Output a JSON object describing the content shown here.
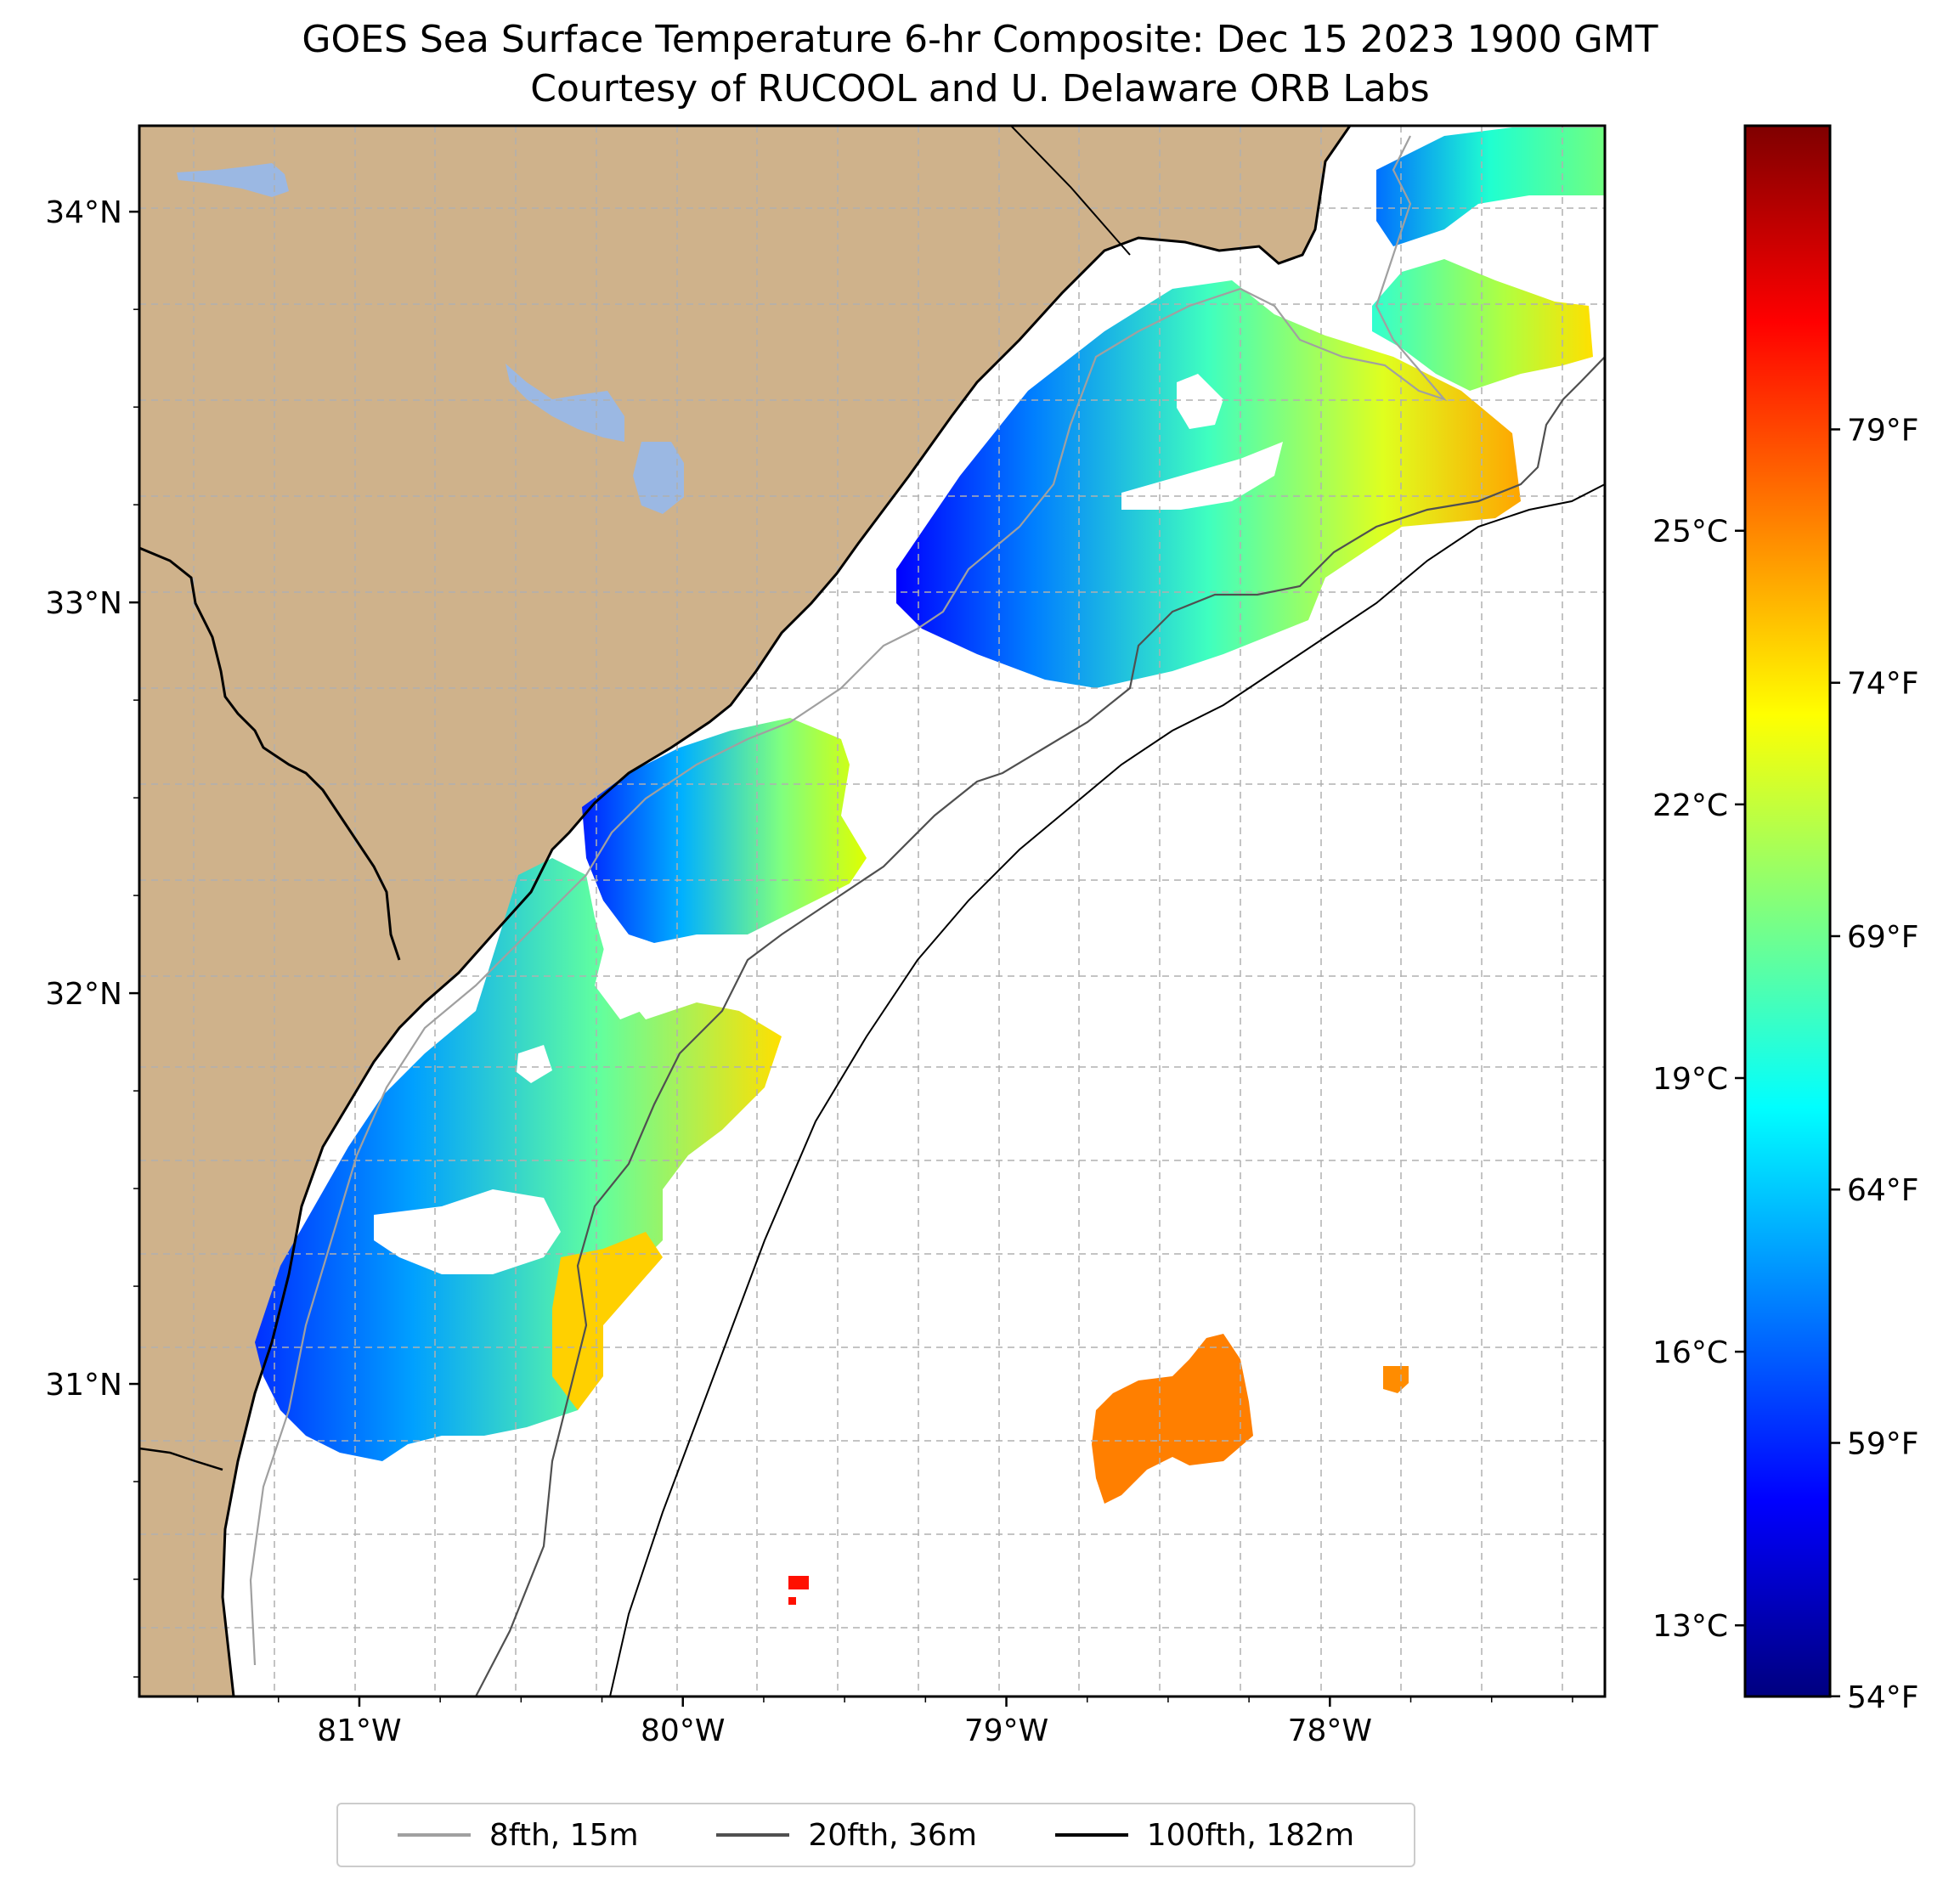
{
  "title": {
    "line1": "GOES Sea Surface Temperature 6-hr Composite: Dec 15 2023 1900 GMT",
    "line2": "Courtesy of RUCOOL and U. Delaware ORB Labs"
  },
  "map": {
    "lon_range": [
      -81.68,
      -77.15
    ],
    "lat_range": [
      30.2,
      34.22
    ],
    "lat_ticks": [
      {
        "label": "34°N",
        "value": 34
      },
      {
        "label": "33°N",
        "value": 33
      },
      {
        "label": "32°N",
        "value": 32
      },
      {
        "label": "31°N",
        "value": 31
      }
    ],
    "lon_ticks": [
      {
        "label": "81°W",
        "value": -81
      },
      {
        "label": "80°W",
        "value": -80
      },
      {
        "label": "79°W",
        "value": -79
      },
      {
        "label": "78°W",
        "value": -78
      }
    ],
    "land_color": "#cfb28b",
    "water_color": "#9bb8e3"
  },
  "colorbar": {
    "colors": [
      "#00007f",
      "#0000ff",
      "#007fff",
      "#00ffff",
      "#7fff7f",
      "#ffff00",
      "#ff7f00",
      "#ff0000",
      "#7f0000"
    ],
    "celsius": [
      {
        "label": "25°C",
        "value": 25
      },
      {
        "label": "22°C",
        "value": 22
      },
      {
        "label": "19°C",
        "value": 19
      },
      {
        "label": "16°C",
        "value": 16
      },
      {
        "label": "13°C",
        "value": 13
      }
    ],
    "fahrenheit": [
      {
        "label": "79°F",
        "value": 79
      },
      {
        "label": "74°F",
        "value": 74
      },
      {
        "label": "69°F",
        "value": 69
      },
      {
        "label": "64°F",
        "value": 64
      },
      {
        "label": "59°F",
        "value": 59
      },
      {
        "label": "54°F",
        "value": 54
      }
    ]
  },
  "legend": {
    "items": [
      {
        "label": "8fth, 15m",
        "color": "#a0a0a0"
      },
      {
        "label": "20fth, 36m",
        "color": "#505050"
      },
      {
        "label": "100fth, 182m",
        "color": "#000000"
      }
    ]
  }
}
